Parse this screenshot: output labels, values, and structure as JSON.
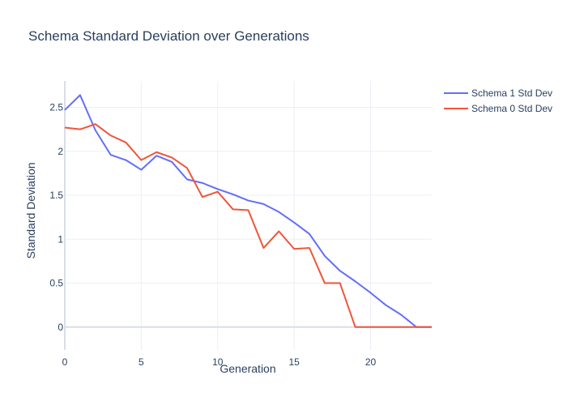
{
  "chart_data": {
    "type": "line",
    "title": "Schema Standard Deviation over Generations",
    "xlabel": "Generation",
    "ylabel": "Standard Deviation",
    "xlim": [
      0,
      24
    ],
    "ylim": [
      -0.26,
      2.8
    ],
    "x_ticks": [
      0,
      5,
      10,
      15,
      20
    ],
    "y_ticks": [
      0,
      0.5,
      1,
      1.5,
      2,
      2.5
    ],
    "y_tick_labels": [
      "0",
      "0.5",
      "1",
      "1.5",
      "2",
      "2.5"
    ],
    "x_tick_labels": [
      "0",
      "5",
      "10",
      "15",
      "20"
    ],
    "grid": true,
    "legend": "top-right",
    "x": [
      0,
      1,
      2,
      3,
      4,
      5,
      6,
      7,
      8,
      9,
      10,
      11,
      12,
      13,
      14,
      15,
      16,
      17,
      18,
      19,
      20,
      21,
      22,
      23,
      24
    ],
    "series": [
      {
        "name": "Schema 1 Std Dev",
        "color": "#636efa",
        "values": [
          2.47,
          2.64,
          2.24,
          1.96,
          1.9,
          1.79,
          1.95,
          1.88,
          1.68,
          1.64,
          1.57,
          1.51,
          1.44,
          1.4,
          1.31,
          1.19,
          1.06,
          0.81,
          0.64,
          0.52,
          0.39,
          0.25,
          0.14,
          0.0,
          0.0
        ]
      },
      {
        "name": "Schema 0 Std Dev",
        "color": "#ef553b",
        "values": [
          2.27,
          2.25,
          2.31,
          2.18,
          2.1,
          1.9,
          1.99,
          1.93,
          1.81,
          1.48,
          1.54,
          1.34,
          1.33,
          0.9,
          1.09,
          0.89,
          0.9,
          0.5,
          0.5,
          0.0,
          0.0,
          0.0,
          0.0,
          0.0,
          0.0
        ]
      }
    ]
  }
}
